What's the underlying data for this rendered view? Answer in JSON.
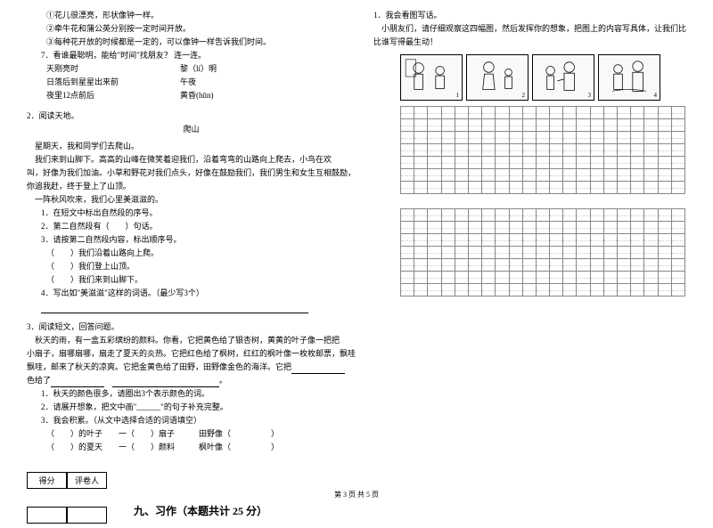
{
  "left": {
    "p1_l1": "①花儿很漂亮，形状像钟一样。",
    "p1_l2": "②牵牛花和蒲公英分别按一定时间开放。",
    "p1_l3": "③每种花开放的时候都是一定的，可以像钟一样告诉我们时间。",
    "q7": "7．看谁最聪明，能给\"时间\"找朋友？ 连一连。",
    "q7_a1": "天刚亮时",
    "q7_a2": "黎（lí）明",
    "q7_b1": "日落后到星星出来前",
    "q7_b2": "午夜",
    "q7_c1": "夜里12点前后",
    "q7_c2": "黄昏(hūn)",
    "sec2": "2．阅读天地。",
    "title2": "爬山",
    "t2_l1": "    星期天，我和同学们去爬山。",
    "t2_l2": "    我们来到山脚下。高高的山峰在微笑着迎我们，沿着弯弯的山路向上爬去，小鸟在欢",
    "t2_l3": "叫，好像为我们加油。小草和野花对我们点头，好像在鼓励我们，我们男生和女生互相鼓励，",
    "t2_l4": "你追我赶，终于登上了山顶。",
    "t2_l5": "    一阵秋风吹来，我们心里美滋滋的。",
    "q2_1": "1．在短文中标出自然段的序号。",
    "q2_2": "2．第二自然段有（　　）句话。",
    "q2_3": "3．请按第二自然段内容，标出顺序号。",
    "q2_3a": "（　　）我们沿着山路向上爬。",
    "q2_3b": "（　　）我们登上山顶。",
    "q2_3c": "（　　）我们来到山脚下。",
    "q2_4": "4．写出如\"美滋滋\"这样的词语。（最少写3个）",
    "sec3": "3．阅读短文，回答问题。",
    "t3_l1": "    秋天的雨，有一盒五彩缤纷的颜料。你看，它把黄色给了银杏树，黄黄的叶子像一把把",
    "t3_l2": "小扇子，扇哪扇哪，扇走了夏天的炎热。它把红色给了枫树，红红的枫叶像一枚枚邮票，飘哇",
    "t3_l3": "飘哇，邮来了秋天的凉爽。它把金黄色给了田野，田野像金色的海洋。它把",
    "t3_l4": "色给了",
    "q3_1": "1．秋天的颜色很多，请圈出3个表示颜色的词。",
    "q3_2": "2．请展开想象，把文中画\"______\"的句子补充完整。",
    "q3_3": "3．我会积累。（从文中选择合适的词语填空）",
    "q3_3a": "（　　）的叶子　　一（　　）扇子　　　田野像（　　　　　）",
    "q3_3b": "（　　）的夏天　　一（　　）颜料　　　枫叶像（　　　　　）",
    "score_h1": "得分",
    "score_h2": "评卷人",
    "sec9": "九、习作（本题共计 25 分）"
  },
  "right": {
    "q1": "1．我会看图写话。",
    "q1_t1": "    小朋友们，请仔细观察这四幅图，然后发挥你的想象，把图上的内容写具体，让我们比",
    "q1_t2": "比谁写得最生动！",
    "img_nums": [
      "1",
      "2",
      "3",
      "4"
    ],
    "grid": {
      "rows_block1": 7,
      "rows_block2": 7,
      "cols": 21
    }
  },
  "footer": "第 3 页 共 5 页"
}
